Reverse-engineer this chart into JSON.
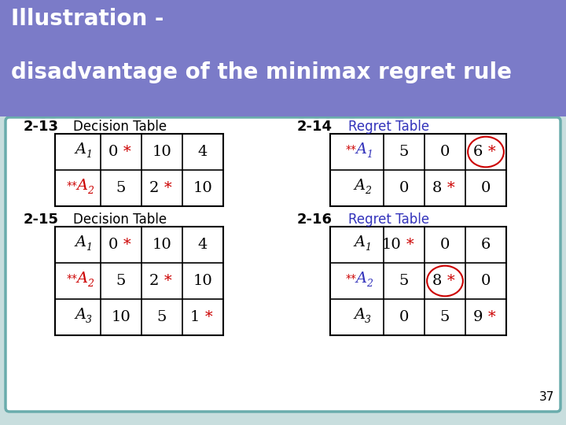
{
  "title_line1": "Illustration -",
  "title_line2": "disadvantage of the minimax regret rule",
  "title_bg": "#7b7bc8",
  "title_text_color": "#ffffff",
  "slide_bg": "#c8dede",
  "body_bg": "#ffffff",
  "body_border_color": "#6aacac",
  "table_border_color": "#000000",
  "label_213": "2-13",
  "label_214": "2-14",
  "label_215": "2-15",
  "label_216": "2-16",
  "decision_table_label": "Decision Table",
  "regret_table_label": "Regret Table",
  "regret_table_color": "#3333bb",
  "black_color": "#000000",
  "red_color": "#cc0000",
  "page_number": "37",
  "dt1_rows": [
    {
      "label": "A",
      "sub": "1",
      "label_color": "#000000",
      "star_prefix": false,
      "values": [
        "0",
        "10",
        "4"
      ],
      "star_mask": [
        true,
        false,
        false
      ],
      "star_colors": [
        "#cc0000",
        "#000000",
        "#000000"
      ],
      "circle": -1
    },
    {
      "label": "A",
      "sub": "2",
      "label_color": "#cc0000",
      "star_prefix": true,
      "values": [
        "5",
        "2",
        "10"
      ],
      "star_mask": [
        false,
        true,
        false
      ],
      "star_colors": [
        "#000000",
        "#cc0000",
        "#000000"
      ],
      "circle": -1
    }
  ],
  "rt1_rows": [
    {
      "label": "A",
      "sub": "1",
      "label_color": "#3333bb",
      "star_prefix": true,
      "values": [
        "5",
        "0",
        "6"
      ],
      "star_mask": [
        false,
        false,
        true
      ],
      "star_colors": [
        "#000000",
        "#000000",
        "#cc0000"
      ],
      "circle": 2
    },
    {
      "label": "A",
      "sub": "2",
      "label_color": "#000000",
      "star_prefix": false,
      "values": [
        "0",
        "8",
        "0"
      ],
      "star_mask": [
        false,
        true,
        false
      ],
      "star_colors": [
        "#000000",
        "#cc0000",
        "#000000"
      ],
      "circle": -1
    }
  ],
  "dt2_rows": [
    {
      "label": "A",
      "sub": "1",
      "label_color": "#000000",
      "star_prefix": false,
      "values": [
        "0",
        "10",
        "4"
      ],
      "star_mask": [
        true,
        false,
        false
      ],
      "star_colors": [
        "#cc0000",
        "#000000",
        "#000000"
      ],
      "circle": -1
    },
    {
      "label": "A",
      "sub": "2",
      "label_color": "#cc0000",
      "star_prefix": true,
      "values": [
        "5",
        "2",
        "10"
      ],
      "star_mask": [
        false,
        true,
        false
      ],
      "star_colors": [
        "#000000",
        "#cc0000",
        "#000000"
      ],
      "circle": -1
    },
    {
      "label": "A",
      "sub": "3",
      "label_color": "#000000",
      "star_prefix": false,
      "values": [
        "10",
        "5",
        "1"
      ],
      "star_mask": [
        false,
        false,
        true
      ],
      "star_colors": [
        "#000000",
        "#000000",
        "#cc0000"
      ],
      "circle": -1
    }
  ],
  "rt2_rows": [
    {
      "label": "A",
      "sub": "1",
      "label_color": "#000000",
      "star_prefix": false,
      "values": [
        "10 ",
        "0",
        "6"
      ],
      "star_mask": [
        true,
        false,
        false
      ],
      "star_colors": [
        "#000000",
        "#000000",
        "#000000"
      ],
      "circle": -1
    },
    {
      "label": "A",
      "sub": "2",
      "label_color": "#3333bb",
      "star_prefix": true,
      "values": [
        "5",
        "8",
        "0"
      ],
      "star_mask": [
        false,
        true,
        false
      ],
      "star_colors": [
        "#000000",
        "#cc0000",
        "#000000"
      ],
      "circle": 1
    },
    {
      "label": "A",
      "sub": "3",
      "label_color": "#000000",
      "star_prefix": false,
      "values": [
        "0",
        "5",
        "9"
      ],
      "star_mask": [
        false,
        false,
        true
      ],
      "star_colors": [
        "#000000",
        "#000000",
        "#cc0000"
      ],
      "circle": -1
    }
  ]
}
